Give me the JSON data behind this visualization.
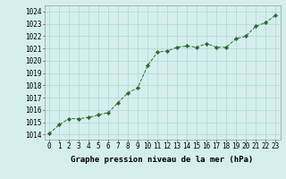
{
  "x": [
    0,
    1,
    2,
    3,
    4,
    5,
    6,
    7,
    8,
    9,
    10,
    11,
    12,
    13,
    14,
    15,
    16,
    17,
    18,
    19,
    20,
    21,
    22,
    23
  ],
  "y": [
    1014.1,
    1014.8,
    1015.3,
    1015.3,
    1015.4,
    1015.6,
    1015.8,
    1016.6,
    1017.4,
    1017.8,
    1019.6,
    1020.7,
    1020.8,
    1021.1,
    1021.2,
    1021.1,
    1021.4,
    1021.1,
    1021.1,
    1021.8,
    1022.0,
    1022.8,
    1023.1,
    1023.7
  ],
  "line_color": "#2d6a2d",
  "marker": "D",
  "marker_size": 2.2,
  "bg_color": "#d4eeee",
  "grid_color": "#b8d4d4",
  "xlabel": "Graphe pression niveau de la mer (hPa)",
  "xlabel_fontsize": 6.5,
  "ylabel_ticks": [
    1014,
    1015,
    1016,
    1017,
    1018,
    1019,
    1020,
    1021,
    1022,
    1023,
    1024
  ],
  "ylim": [
    1013.6,
    1024.5
  ],
  "xlim": [
    -0.5,
    23.5
  ],
  "xticks": [
    0,
    1,
    2,
    3,
    4,
    5,
    6,
    7,
    8,
    9,
    10,
    11,
    12,
    13,
    14,
    15,
    16,
    17,
    18,
    19,
    20,
    21,
    22,
    23
  ],
  "tick_fontsize": 5.5,
  "linewidth": 0.7
}
